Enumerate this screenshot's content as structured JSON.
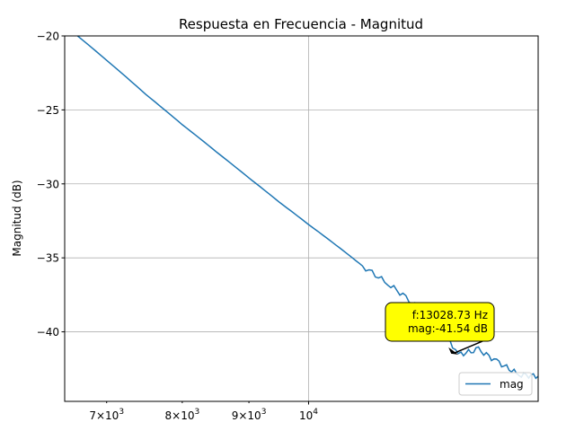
{
  "chart_data": {
    "type": "line",
    "title": "Respuesta en Frecuencia - Magnitud",
    "xlabel": "",
    "ylabel": "Magnitud (dB)",
    "x_scale": "log",
    "xlim": [
      6500,
      15000
    ],
    "ylim": [
      -44.7,
      -20
    ],
    "grid": true,
    "x_ticks": [
      {
        "value": 7000,
        "base": "7×10",
        "exp": "3"
      },
      {
        "value": 8000,
        "base": "8×10",
        "exp": "3"
      },
      {
        "value": 9000,
        "base": "9×10",
        "exp": "3"
      },
      {
        "value": 10000,
        "base": "10",
        "exp": "4"
      }
    ],
    "y_ticks": [
      {
        "value": -20,
        "label": "−20"
      },
      {
        "value": -25,
        "label": "−25"
      },
      {
        "value": -30,
        "label": "−30"
      },
      {
        "value": -35,
        "label": "−35"
      },
      {
        "value": -40,
        "label": "−40"
      }
    ],
    "series": [
      {
        "name": "mag",
        "color": "#1f77b4",
        "x": [
          6650,
          7000,
          7500,
          8000,
          8500,
          9000,
          9500,
          10000,
          10500,
          11000,
          11500,
          12000,
          12500,
          13028.73,
          13500,
          14000,
          14500,
          15000
        ],
        "y": [
          -20.0,
          -21.65,
          -23.95,
          -26.0,
          -27.85,
          -29.6,
          -31.25,
          -32.75,
          -34.15,
          -35.55,
          -36.75,
          -37.95,
          -39.05,
          -41.54,
          -41.2,
          -42.1,
          -42.9,
          -43.0
        ]
      }
    ],
    "legend": {
      "position": "lower right",
      "entries": [
        "mag"
      ]
    },
    "annotation": {
      "lines": [
        "f:13028.73 Hz",
        "mag:-41.54 dB"
      ],
      "point": {
        "x": 13028.73,
        "y": -41.54
      },
      "box_color": "#ffff00"
    }
  }
}
